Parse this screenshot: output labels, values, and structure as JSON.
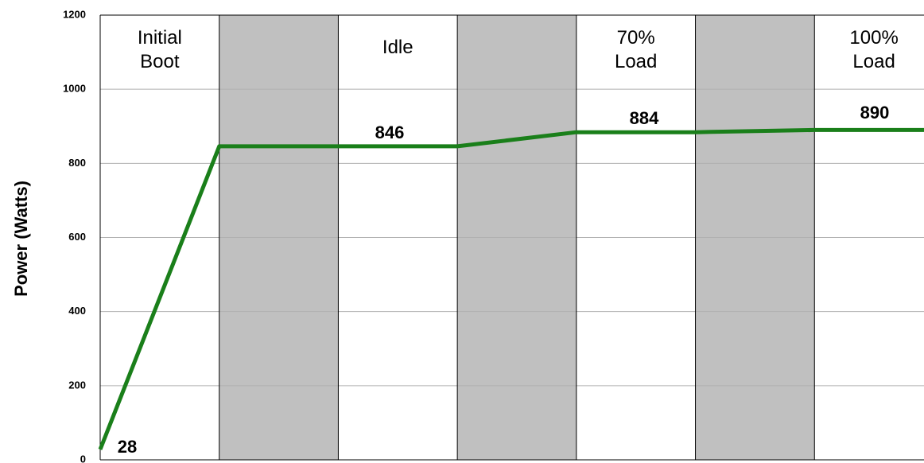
{
  "chart_data": {
    "type": "line",
    "y_label": "Power (Watts)",
    "phases": [
      "Initial Boot",
      null,
      "Idle",
      null,
      "70% Load",
      null,
      "100% Load"
    ],
    "x": [
      0,
      1,
      3,
      4,
      5,
      6,
      6.92
    ],
    "xlim": [
      0,
      6.92
    ],
    "series": [
      {
        "name": "Power",
        "color": "#1a7f1a",
        "values": [
          28,
          846,
          846,
          884,
          884,
          890,
          890
        ]
      }
    ],
    "ylim": [
      0,
      1200
    ],
    "yticks": [
      0,
      200,
      400,
      600,
      800,
      1000,
      1200
    ],
    "grid": true
  }
}
